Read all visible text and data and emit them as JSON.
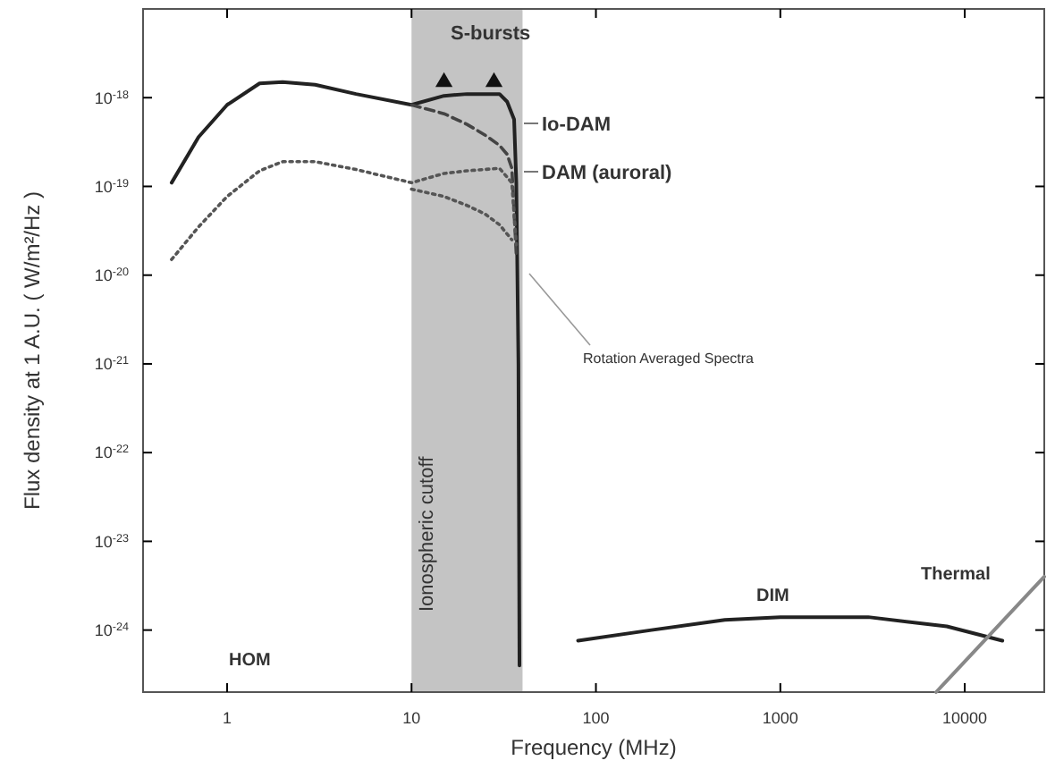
{
  "chart_data": {
    "type": "line",
    "xlabel": "Frequency  (MHz)",
    "ylabel": "Flux density at 1 A.U. ( W/m²/Hz )",
    "log": "xy",
    "xlim": [
      0.35,
      27000
    ],
    "ylim": [
      2e-25,
      1e-17
    ],
    "xticks": [
      1,
      10,
      100,
      1000,
      10000
    ],
    "yticks": [
      {
        "value": 1e-18,
        "label": "10$^{-18}$"
      },
      {
        "value": 1e-19,
        "label": "10$^{-19}$"
      },
      {
        "value": 1e-20,
        "label": "10$^{-20}$"
      },
      {
        "value": 1e-21,
        "label": "10$^{-21}$"
      },
      {
        "value": 1e-22,
        "label": "10$^{-22}$"
      },
      {
        "value": 1e-23,
        "label": "10$^{-23}$"
      },
      {
        "value": 1e-24,
        "label": "10$^{-24}$"
      }
    ],
    "bands": [
      {
        "axis": "x",
        "from": 10,
        "to": 40,
        "label": "Ionospheric cutoff",
        "color": "#c4c4c4"
      }
    ],
    "series": [
      {
        "color": "#222222",
        "line_style": "solid",
        "x": [
          0.5,
          0.7,
          1,
          1.5,
          2,
          3,
          5,
          10,
          15,
          20,
          30,
          33,
          36,
          37,
          38,
          38.5
        ],
        "values": [
          1.1e-19,
          3.6e-19,
          8.3e-19,
          1.45e-18,
          1.5e-18,
          1.4e-18,
          1.1e-18,
          8.3e-19,
          1.05e-18,
          1.1e-18,
          1.1e-18,
          9e-19,
          5.7e-19,
          1.1e-19,
          1e-21,
          4e-25
        ]
      },
      {
        "color": "#444444",
        "line_style": "dashed",
        "x": [
          10,
          15,
          20,
          25,
          30,
          33,
          35,
          37
        ],
        "values": [
          8.3e-19,
          6.6e-19,
          5e-19,
          3.8e-19,
          2.9e-19,
          2.3e-19,
          1.6e-19,
          1.7e-20
        ]
      },
      {
        "color": "#555555",
        "line_style": "dotted",
        "x": [
          0.5,
          0.7,
          1,
          1.5,
          2,
          3,
          5,
          10,
          15,
          20,
          30,
          35,
          37
        ],
        "values": [
          1.5e-20,
          3.5e-20,
          7.7e-20,
          1.5e-19,
          1.9e-19,
          1.9e-19,
          1.55e-19,
          1.1e-19,
          1.4e-19,
          1.5e-19,
          1.6e-19,
          1.1e-19,
          2.2e-20
        ]
      },
      {
        "color": "#555555",
        "line_style": "dotted",
        "x": [
          10,
          15,
          20,
          25,
          30,
          35
        ],
        "values": [
          9.3e-20,
          7.7e-20,
          6.1e-20,
          4.9e-20,
          3.7e-20,
          2.5e-20
        ]
      },
      {
        "color": "#222222",
        "line_style": "solid",
        "x": [
          80,
          200,
          500,
          1000,
          3000,
          8000,
          16000
        ],
        "values": [
          7.6e-25,
          1e-24,
          1.3e-24,
          1.4e-24,
          1.4e-24,
          1.1e-24,
          7.6e-25
        ]
      },
      {
        "color": "#888888",
        "line_style": "solid",
        "x": [
          7000,
          27000
        ],
        "values": [
          2e-25,
          4e-24
        ]
      },
      {
        "type": "scatter",
        "marker": "triangle",
        "color": "#111111",
        "x": [
          15,
          28
        ],
        "values": [
          1.5e-18,
          1.5e-18
        ]
      }
    ],
    "annotations": [
      "S-bursts",
      "Io-DAM",
      "DAM (auroral)",
      "Rotation Averaged Spectra",
      "HOM",
      "DIM",
      "Thermal"
    ]
  }
}
